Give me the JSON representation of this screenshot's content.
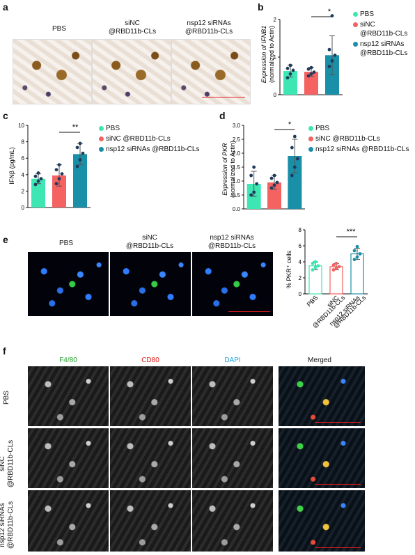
{
  "panels": {
    "a": {
      "letter": "a",
      "columns": [
        "PBS",
        "siNC\n@RBD11b-CLs",
        "nsp12 siRNAs\n@RBD11b-CLs"
      ]
    },
    "b": {
      "letter": "b",
      "ylabel_1": "Expression of IFNB1",
      "ylabel_2": "(normalized to Actin)",
      "sig": "*",
      "legend": [
        "PBS",
        "siNC\n@RBD11b-CLs",
        "nsp12 siRNAs\n@RBD11b-CLs"
      ]
    },
    "c": {
      "letter": "c",
      "ylabel": "IFNβ (pg/mL)",
      "sig": "**",
      "legend": [
        "PBS",
        "siNC @RBD11b-CLs",
        "nsp12 siRNAs @RBD11b-CLs"
      ]
    },
    "d": {
      "letter": "d",
      "ylabel_1": "Expression of PKR",
      "ylabel_2": "(normalized to Actin)",
      "sig": "*",
      "legend": [
        "PBS",
        "siNC @RBD11b-CLs",
        "nsp12 siRNAs @RBD11b-CLs"
      ]
    },
    "e": {
      "letter": "e",
      "columns": [
        "PBS",
        "siNC\n@RBD11b-CLs",
        "nsp12 siRNAs\n@RBD11b-CLs"
      ],
      "ylabel": "% PKR⁺ cells",
      "sig": "***",
      "xlabels": [
        "PBS",
        "siNC\n@RBD11b-CLs",
        "nsp12 siRNAs\n@RBD11b-CLs"
      ]
    },
    "f": {
      "letter": "f",
      "channels": [
        {
          "label": "F4/80",
          "color": "#22a02a"
        },
        {
          "label": "CD80",
          "color": "#e01b1b"
        },
        {
          "label": "DAPI",
          "color": "#1aa3d8"
        },
        {
          "label": "Merged",
          "color": "#111111"
        }
      ],
      "rows": [
        "PBS",
        "siNC\n@RBD11b-CLs",
        "nsp12 siRNAs\n@RBD11b-CLs"
      ]
    }
  },
  "colors": {
    "pbs": "#3ee6b4",
    "sinc": "#f46262",
    "nsp12": "#1a8fa8",
    "point": "#1f3b5c"
  },
  "chart_data": [
    {
      "id": "b",
      "type": "bar",
      "categories": [
        "PBS",
        "siNC @RBD11b-CLs",
        "nsp12 siRNAs @RBD11b-CLs"
      ],
      "values": [
        0.63,
        0.61,
        1.05
      ],
      "errors": [
        0.16,
        0.12,
        0.52
      ],
      "ylim": [
        0,
        2
      ],
      "yticks": [
        0,
        1,
        2
      ],
      "points": [
        [
          0.45,
          0.55,
          0.65,
          0.7,
          0.78
        ],
        [
          0.5,
          0.55,
          0.6,
          0.68,
          0.72
        ],
        [
          0.75,
          0.9,
          1.05,
          1.2,
          2.1
        ]
      ]
    },
    {
      "id": "c",
      "type": "bar",
      "categories": [
        "PBS",
        "siNC @RBD11b-CLs",
        "nsp12 siRNAs @RBD11b-CLs"
      ],
      "values": [
        3.5,
        3.9,
        6.5
      ],
      "errors": [
        0.6,
        1.3,
        1.3
      ],
      "ylim": [
        0,
        10
      ],
      "yticks": [
        0,
        2,
        4,
        6,
        8,
        10
      ],
      "points": [
        [
          2.8,
          3.2,
          3.5,
          3.8,
          4.2
        ],
        [
          2.9,
          3.5,
          4.1,
          4.6,
          5.2
        ],
        [
          5.0,
          5.8,
          6.6,
          7.3,
          7.8
        ]
      ]
    },
    {
      "id": "d",
      "type": "bar",
      "categories": [
        "PBS",
        "siNC @RBD11b-CLs",
        "nsp12 siRNAs @RBD11b-CLs"
      ],
      "values": [
        0.9,
        0.95,
        1.9
      ],
      "errors": [
        0.45,
        0.25,
        0.6
      ],
      "ylim": [
        0,
        3
      ],
      "yticks": [
        0.0,
        0.5,
        1.0,
        1.5,
        2.0,
        2.5,
        3.0
      ],
      "points": [
        [
          0.5,
          0.6,
          0.9,
          1.2,
          1.5
        ],
        [
          0.75,
          0.85,
          0.95,
          1.1,
          1.2
        ],
        [
          1.2,
          1.5,
          1.8,
          2.2,
          2.6
        ]
      ]
    },
    {
      "id": "e",
      "type": "bar",
      "categories": [
        "PBS",
        "siNC @RBD11b-CLs",
        "nsp12 siRNAs @RBD11b-CLs"
      ],
      "values": [
        3.5,
        3.4,
        5.0
      ],
      "errors": [
        0.5,
        0.4,
        0.7
      ],
      "ylim": [
        0,
        8
      ],
      "yticks": [
        0,
        2,
        4,
        6,
        8
      ],
      "points": [
        [
          3.0,
          3.3,
          3.5,
          3.8,
          4.0
        ],
        [
          3.0,
          3.2,
          3.4,
          3.6,
          3.8
        ],
        [
          4.3,
          4.6,
          5.0,
          5.4,
          5.9
        ]
      ]
    }
  ]
}
